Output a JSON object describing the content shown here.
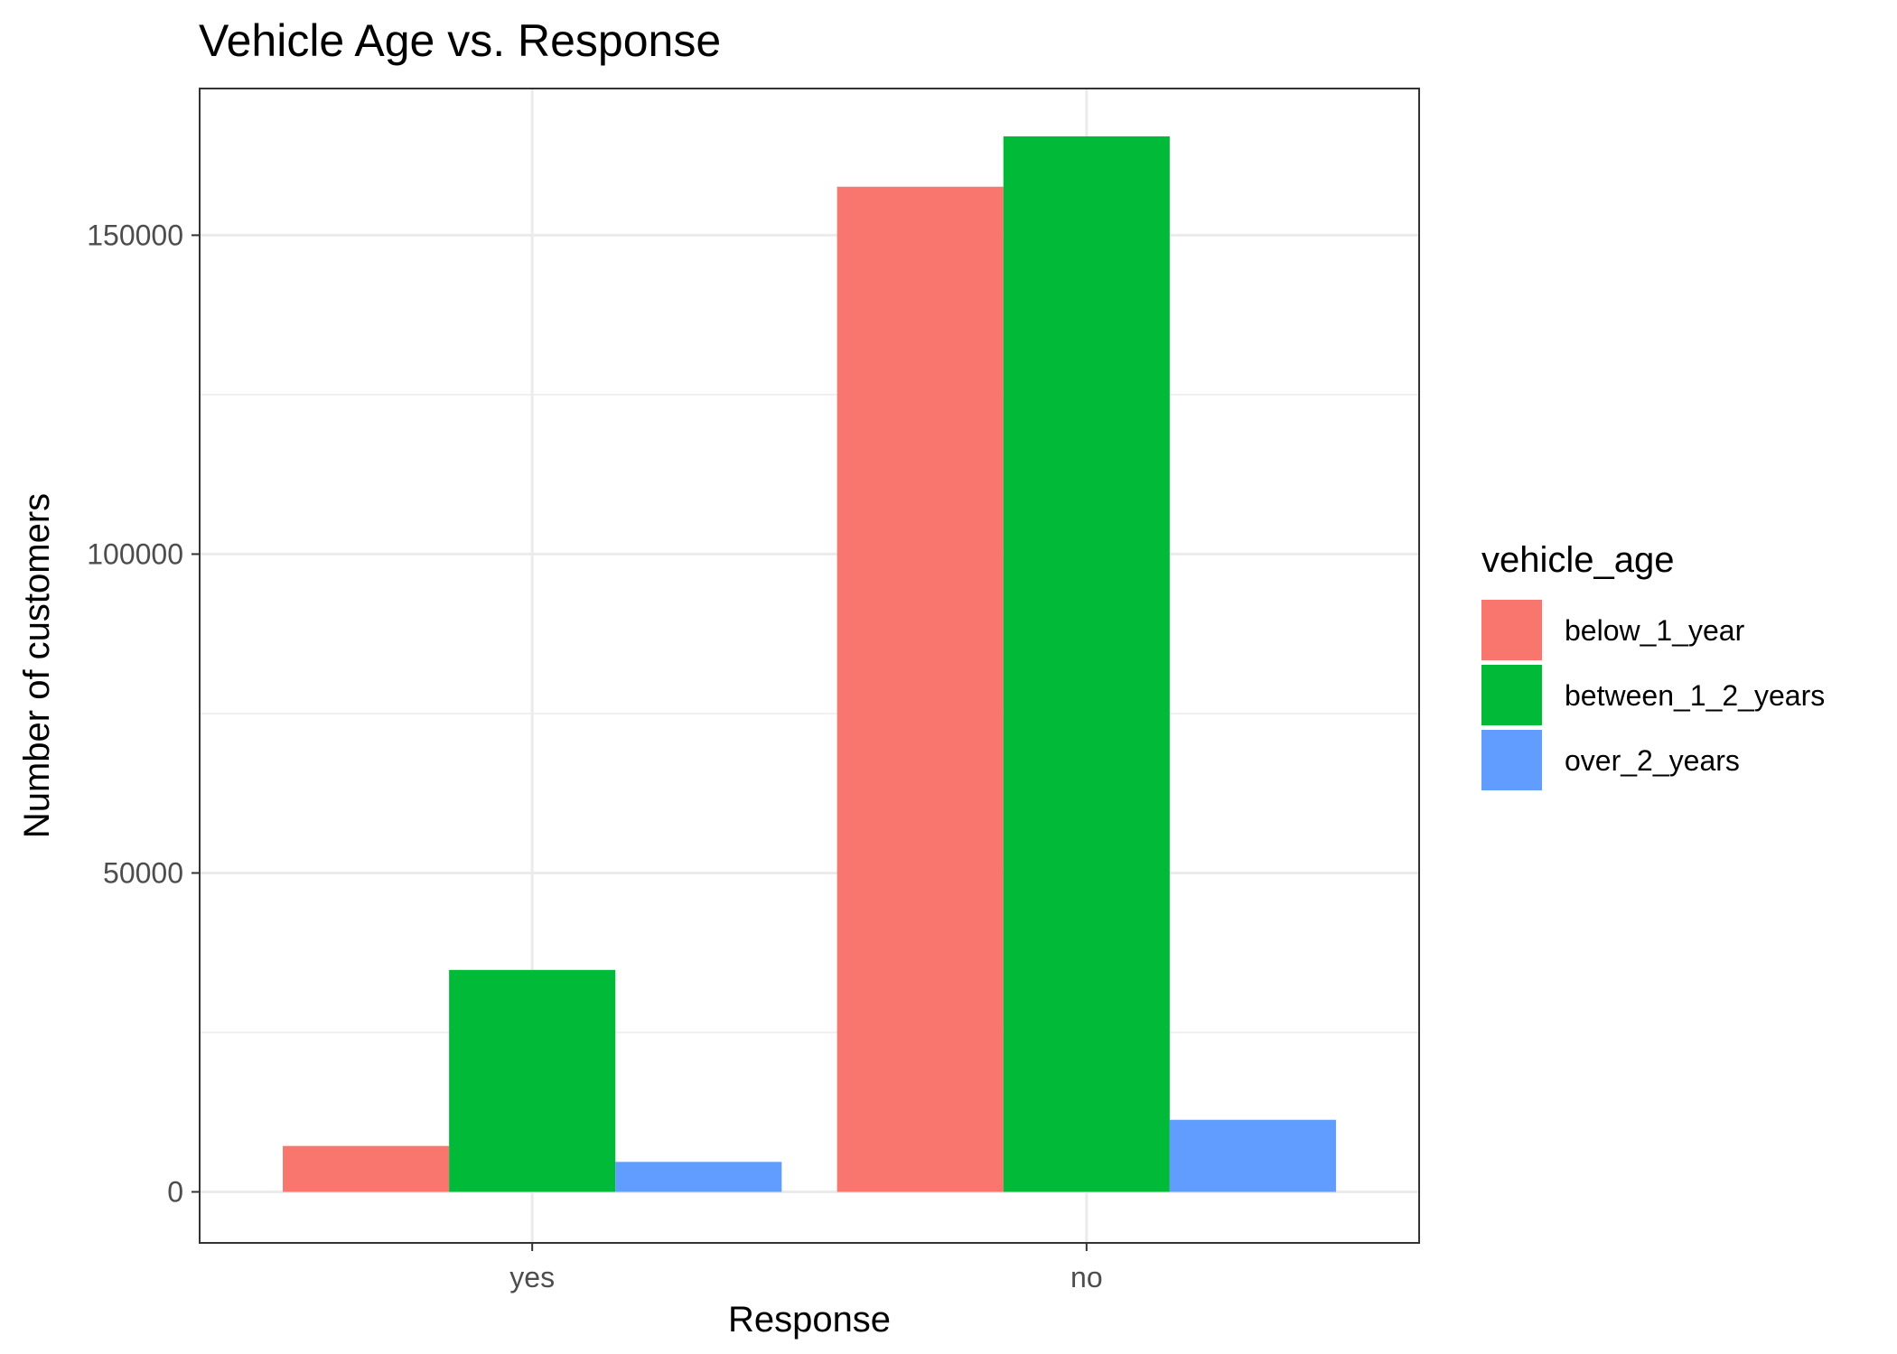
{
  "chart_data": {
    "type": "bar",
    "title": "Vehicle Age vs. Response",
    "xlabel": "Response",
    "ylabel": "Number of customers",
    "categories": [
      "yes",
      "no"
    ],
    "series": [
      {
        "name": "below_1_year",
        "color": "#F8766D",
        "values": [
          7200,
          157600
        ]
      },
      {
        "name": "between_1_2_years",
        "color": "#00BA38",
        "values": [
          34800,
          165500
        ]
      },
      {
        "name": "over_2_years",
        "color": "#619CFF",
        "values": [
          4700,
          11300
        ]
      }
    ],
    "ylim": [
      -8000,
      173000
    ],
    "yticks": [
      0,
      50000,
      100000,
      150000
    ],
    "ytick_labels": [
      "0",
      "50000",
      "100000",
      "150000"
    ],
    "grid": true,
    "legend": {
      "title": "vehicle_age",
      "position": "right"
    }
  }
}
